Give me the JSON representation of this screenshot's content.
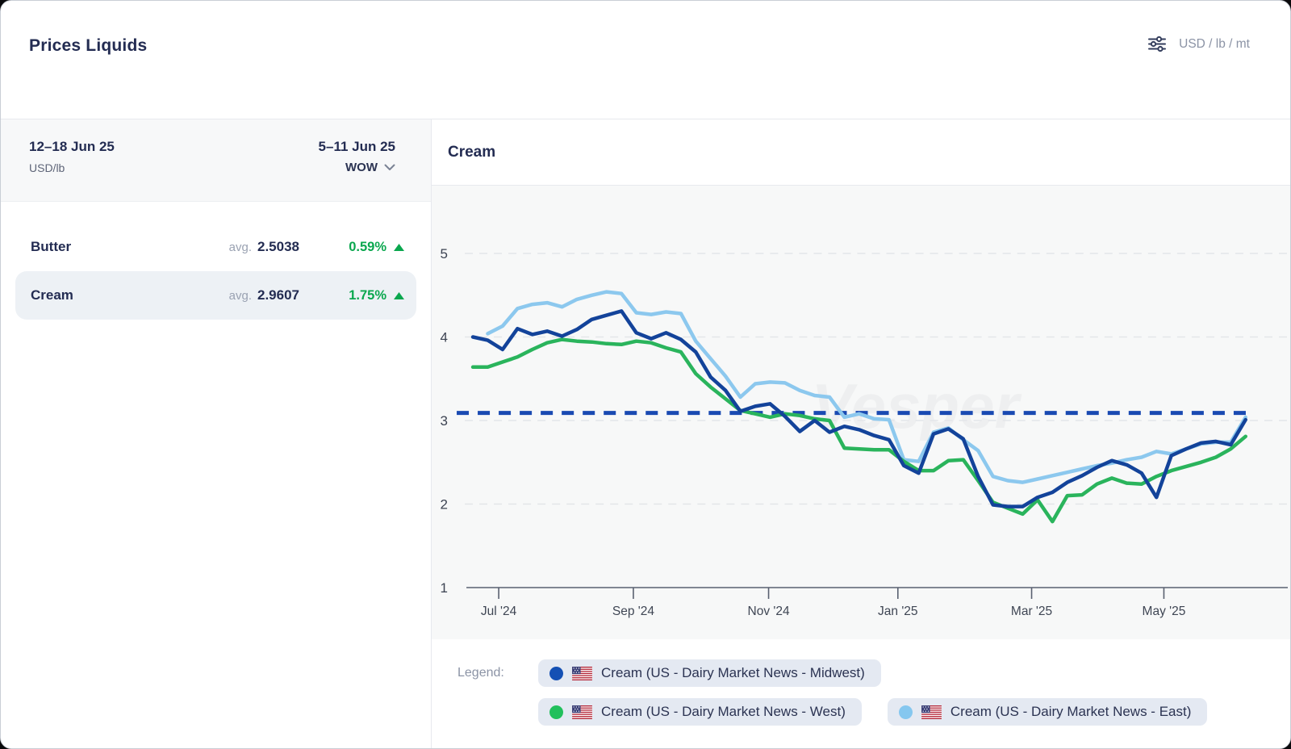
{
  "header": {
    "title": "Prices Liquids",
    "unit_label": "USD / lb / mt"
  },
  "period_bar": {
    "current_period": "12–18 Jun 25",
    "current_unit": "USD/lb",
    "previous_period": "5–11 Jun 25",
    "comparison_label": "WOW"
  },
  "products": {
    "change_up_color": "#0aa74e",
    "rows": [
      {
        "name": "Butter",
        "avg_label": "avg.",
        "avg_value": "2.5038",
        "change": "0.59%",
        "direction": "up",
        "selected": false
      },
      {
        "name": "Cream",
        "avg_label": "avg.",
        "avg_value": "2.9607",
        "change": "1.75%",
        "direction": "up",
        "selected": true
      }
    ]
  },
  "chart": {
    "title": "Cream",
    "watermark": "Vesper"
  },
  "chart_data": {
    "type": "line",
    "title": "Cream",
    "xlabel": "",
    "ylabel": "USD/lb",
    "ylim": [
      1,
      5.35
    ],
    "yticks": [
      5,
      4,
      3,
      2,
      1
    ],
    "grid": "dashed horizontal gridlines",
    "legend_position": "bottom",
    "x_unit": "weekly points, mid-Jun 2024 through 12–18 Jun 2025 (week index 0–52)",
    "xticks": [
      {
        "label": "Jul '24",
        "week": 1.74
      },
      {
        "label": "Sep '24",
        "week": 10.8
      },
      {
        "label": "Nov '24",
        "week": 19.9
      },
      {
        "label": "Jan '25",
        "week": 28.6
      },
      {
        "label": "Mar '25",
        "week": 37.6
      },
      {
        "label": "May '25",
        "week": 46.5
      }
    ],
    "reference_line": {
      "value": 3.09,
      "style": "dashed",
      "color": "#1a4ab2"
    },
    "series": [
      {
        "name": "Cream (US - Dairy Market News - East)",
        "color": "#8cc8ee",
        "values": [
          null,
          4.04,
          4.13,
          4.34,
          4.39,
          4.41,
          4.36,
          4.45,
          4.5,
          4.54,
          4.52,
          4.29,
          4.27,
          4.3,
          4.28,
          3.95,
          3.74,
          3.53,
          3.28,
          3.44,
          3.46,
          3.45,
          3.36,
          3.3,
          3.28,
          3.04,
          3.08,
          3.02,
          3.01,
          2.53,
          2.51,
          2.86,
          2.91,
          2.77,
          2.64,
          2.33,
          2.28,
          2.26,
          2.3,
          2.34,
          2.38,
          2.42,
          2.46,
          2.49,
          2.53,
          2.56,
          2.63,
          2.6,
          2.66,
          2.72,
          2.74,
          2.74,
          3.04
        ]
      },
      {
        "name": "Cream (US - Dairy Market News - West)",
        "color": "#2ab45c",
        "values": [
          3.64,
          3.64,
          3.7,
          3.76,
          3.85,
          3.93,
          3.97,
          3.95,
          3.94,
          3.92,
          3.91,
          3.95,
          3.93,
          3.87,
          3.82,
          3.56,
          3.4,
          3.26,
          3.12,
          3.08,
          3.04,
          3.08,
          3.06,
          3.02,
          3.0,
          2.67,
          2.66,
          2.65,
          2.65,
          2.51,
          2.4,
          2.4,
          2.52,
          2.53,
          2.28,
          2.02,
          1.95,
          1.88,
          2.05,
          1.79,
          2.1,
          2.11,
          2.24,
          2.31,
          2.25,
          2.24,
          2.33,
          2.4,
          2.45,
          2.5,
          2.56,
          2.66,
          2.81
        ]
      },
      {
        "name": "Cream (US - Dairy Market News - Midwest)",
        "color": "#13439a",
        "values": [
          4.0,
          3.96,
          3.85,
          4.1,
          4.03,
          4.07,
          4.01,
          4.09,
          4.21,
          4.26,
          4.31,
          4.05,
          3.98,
          4.05,
          3.97,
          3.82,
          3.52,
          3.36,
          3.11,
          3.17,
          3.2,
          3.05,
          2.87,
          3.0,
          2.86,
          2.93,
          2.89,
          2.82,
          2.77,
          2.46,
          2.37,
          2.84,
          2.9,
          2.78,
          2.33,
          1.99,
          1.97,
          1.97,
          2.08,
          2.14,
          2.26,
          2.34,
          2.44,
          2.52,
          2.47,
          2.37,
          2.08,
          2.58,
          2.66,
          2.73,
          2.75,
          2.71,
          3.01
        ]
      }
    ]
  },
  "legend": {
    "label": "Legend:",
    "items": [
      {
        "label": "Cream (US - Dairy Market News - Midwest)",
        "color": "#1450b4"
      },
      {
        "label": "Cream (US - Dairy Market News - West)",
        "color": "#22c05c"
      },
      {
        "label": "Cream (US - Dairy Market News - East)",
        "color": "#85c7ef"
      }
    ]
  }
}
